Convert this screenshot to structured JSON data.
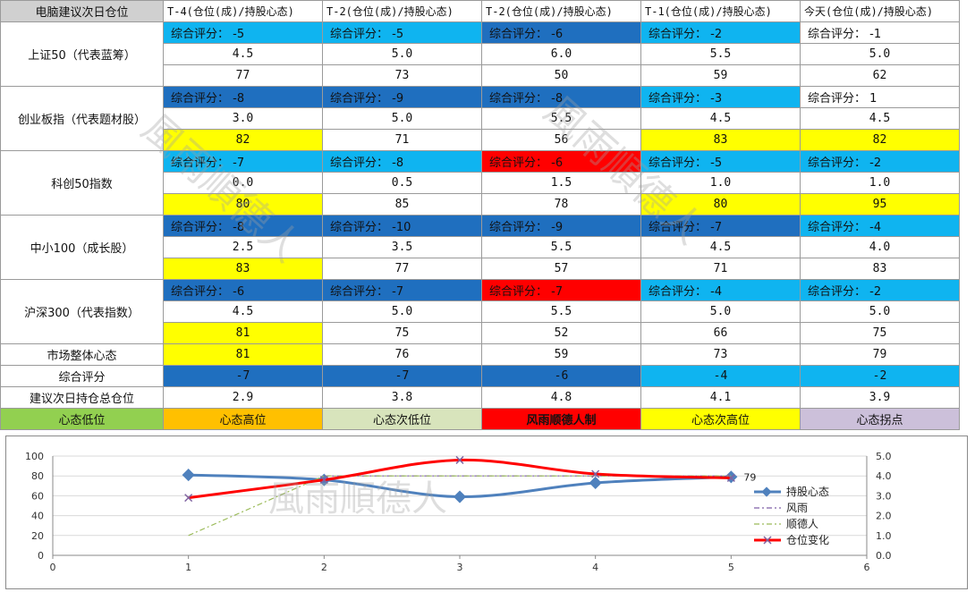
{
  "table": {
    "corner": "电脑建议次日仓位",
    "columns": [
      "T-4(仓位(成)/持股心态)",
      "T-2(仓位(成)/持股心态)",
      "T-2(仓位(成)/持股心态)",
      "T-1(仓位(成)/持股心态)",
      "今天(仓位(成)/持股心态)"
    ],
    "groups": [
      {
        "label": "上证50（代表蓝筹）",
        "scores": [
          "综合评分： -5",
          "综合评分： -5",
          "综合评分： -6",
          "综合评分： -2",
          "综合评分： -1"
        ],
        "score_colors": [
          "light",
          "light",
          "dark",
          "light",
          "white"
        ],
        "positions": [
          "4.5",
          "5.0",
          "6.0",
          "5.5",
          "5.0"
        ],
        "moods": [
          "77",
          "73",
          "50",
          "59",
          "62"
        ],
        "mood_colors": [
          "white",
          "white",
          "white",
          "white",
          "white"
        ]
      },
      {
        "label": "创业板指（代表题材股）",
        "scores": [
          "综合评分： -8",
          "综合评分： -9",
          "综合评分： -8",
          "综合评分： -3",
          "综合评分： 1"
        ],
        "score_colors": [
          "dark",
          "dark",
          "dark",
          "light",
          "white"
        ],
        "positions": [
          "3.0",
          "5.0",
          "5.5",
          "4.5",
          "4.5"
        ],
        "moods": [
          "82",
          "71",
          "56",
          "83",
          "82"
        ],
        "mood_colors": [
          "yellow",
          "white",
          "white",
          "yellow",
          "yellow"
        ]
      },
      {
        "label": "科创50指数",
        "scores": [
          "综合评分： -7",
          "综合评分： -8",
          "综合评分： -6",
          "综合评分： -5",
          "综合评分： -2"
        ],
        "score_colors": [
          "light",
          "light",
          "red",
          "light",
          "light"
        ],
        "positions": [
          "0.0",
          "0.5",
          "1.5",
          "1.0",
          "1.0"
        ],
        "moods": [
          "80",
          "85",
          "78",
          "80",
          "95"
        ],
        "mood_colors": [
          "yellow",
          "white",
          "white",
          "yellow",
          "yellow"
        ]
      },
      {
        "label": "中小100（成长股）",
        "scores": [
          "综合评分： -8",
          "综合评分： -10",
          "综合评分： -9",
          "综合评分： -7",
          "综合评分： -4"
        ],
        "score_colors": [
          "dark",
          "dark",
          "dark",
          "dark",
          "light"
        ],
        "positions": [
          "2.5",
          "3.5",
          "5.5",
          "4.5",
          "4.0"
        ],
        "moods": [
          "83",
          "77",
          "57",
          "71",
          "83"
        ],
        "mood_colors": [
          "yellow",
          "white",
          "white",
          "white",
          "white"
        ]
      },
      {
        "label": "沪深300（代表指数）",
        "scores": [
          "综合评分： -6",
          "综合评分： -7",
          "综合评分： -7",
          "综合评分： -4",
          "综合评分： -2"
        ],
        "score_colors": [
          "dark",
          "dark",
          "red",
          "light",
          "light"
        ],
        "positions": [
          "4.5",
          "5.0",
          "5.5",
          "5.0",
          "5.0"
        ],
        "moods": [
          "81",
          "75",
          "52",
          "66",
          "75"
        ],
        "mood_colors": [
          "yellow",
          "white",
          "white",
          "white",
          "white"
        ]
      }
    ],
    "summary": [
      {
        "label": "市场整体心态",
        "values": [
          "81",
          "76",
          "59",
          "73",
          "79"
        ],
        "colors": [
          "yellow",
          "white",
          "white",
          "white",
          "white"
        ]
      },
      {
        "label": "综合评分",
        "values": [
          "-7",
          "-7",
          "-6",
          "-4",
          "-2"
        ],
        "colors": [
          "dark",
          "dark",
          "dark",
          "light",
          "light"
        ]
      },
      {
        "label": "建议次日持仓总仓位",
        "values": [
          "2.9",
          "3.8",
          "4.8",
          "4.1",
          "3.9"
        ],
        "colors": [
          "white",
          "white",
          "white",
          "white",
          "white"
        ]
      }
    ],
    "legend": [
      "心态低位",
      "心态高位",
      "心态次低位",
      "风雨顺德人制",
      "心态次高位",
      "心态拐点"
    ]
  },
  "colors": {
    "dark": "#1f6fbf",
    "light": "#0fb4f0",
    "yellow": "#ffff00",
    "white": "#ffffff",
    "red": "#ff0000",
    "mood_line": "#4f81bd",
    "position_line": "#ff0000",
    "aux1": "#7f5fa8",
    "aux2": "#9bbb59"
  },
  "watermark": "風雨順德人",
  "chart_data": {
    "type": "line",
    "x": [
      1,
      2,
      3,
      4,
      5
    ],
    "xlim": [
      0,
      6
    ],
    "xticks": [
      "0",
      "1",
      "2",
      "3",
      "4",
      "5",
      "6"
    ],
    "ylim_left": [
      0,
      100
    ],
    "yticks_left": [
      "0",
      "20",
      "40",
      "60",
      "80",
      "100"
    ],
    "ylim_right": [
      0,
      5
    ],
    "yticks_right": [
      "0.0",
      "1.0",
      "2.0",
      "3.0",
      "4.0",
      "5.0"
    ],
    "series": [
      {
        "name": "持股心态",
        "axis": "left",
        "values": [
          81,
          76,
          59,
          73,
          79
        ],
        "color": "#4f81bd",
        "style": "solid-diamond"
      },
      {
        "name": "风雨",
        "axis": "right",
        "values": [
          null,
          4.0,
          4.0,
          4.0,
          4.0
        ],
        "color": "#7f5fa8",
        "style": "dashdot"
      },
      {
        "name": "顺德人",
        "axis": "right",
        "values": [
          1.0,
          4.0,
          4.0,
          4.0,
          4.0
        ],
        "color": "#9bbb59",
        "style": "dashdot"
      },
      {
        "name": "仓位变化",
        "axis": "right",
        "values": [
          2.9,
          3.8,
          4.8,
          4.1,
          3.9
        ],
        "color": "#ff0000",
        "style": "smooth-x"
      }
    ],
    "data_label": "79",
    "legend_position": "right"
  }
}
